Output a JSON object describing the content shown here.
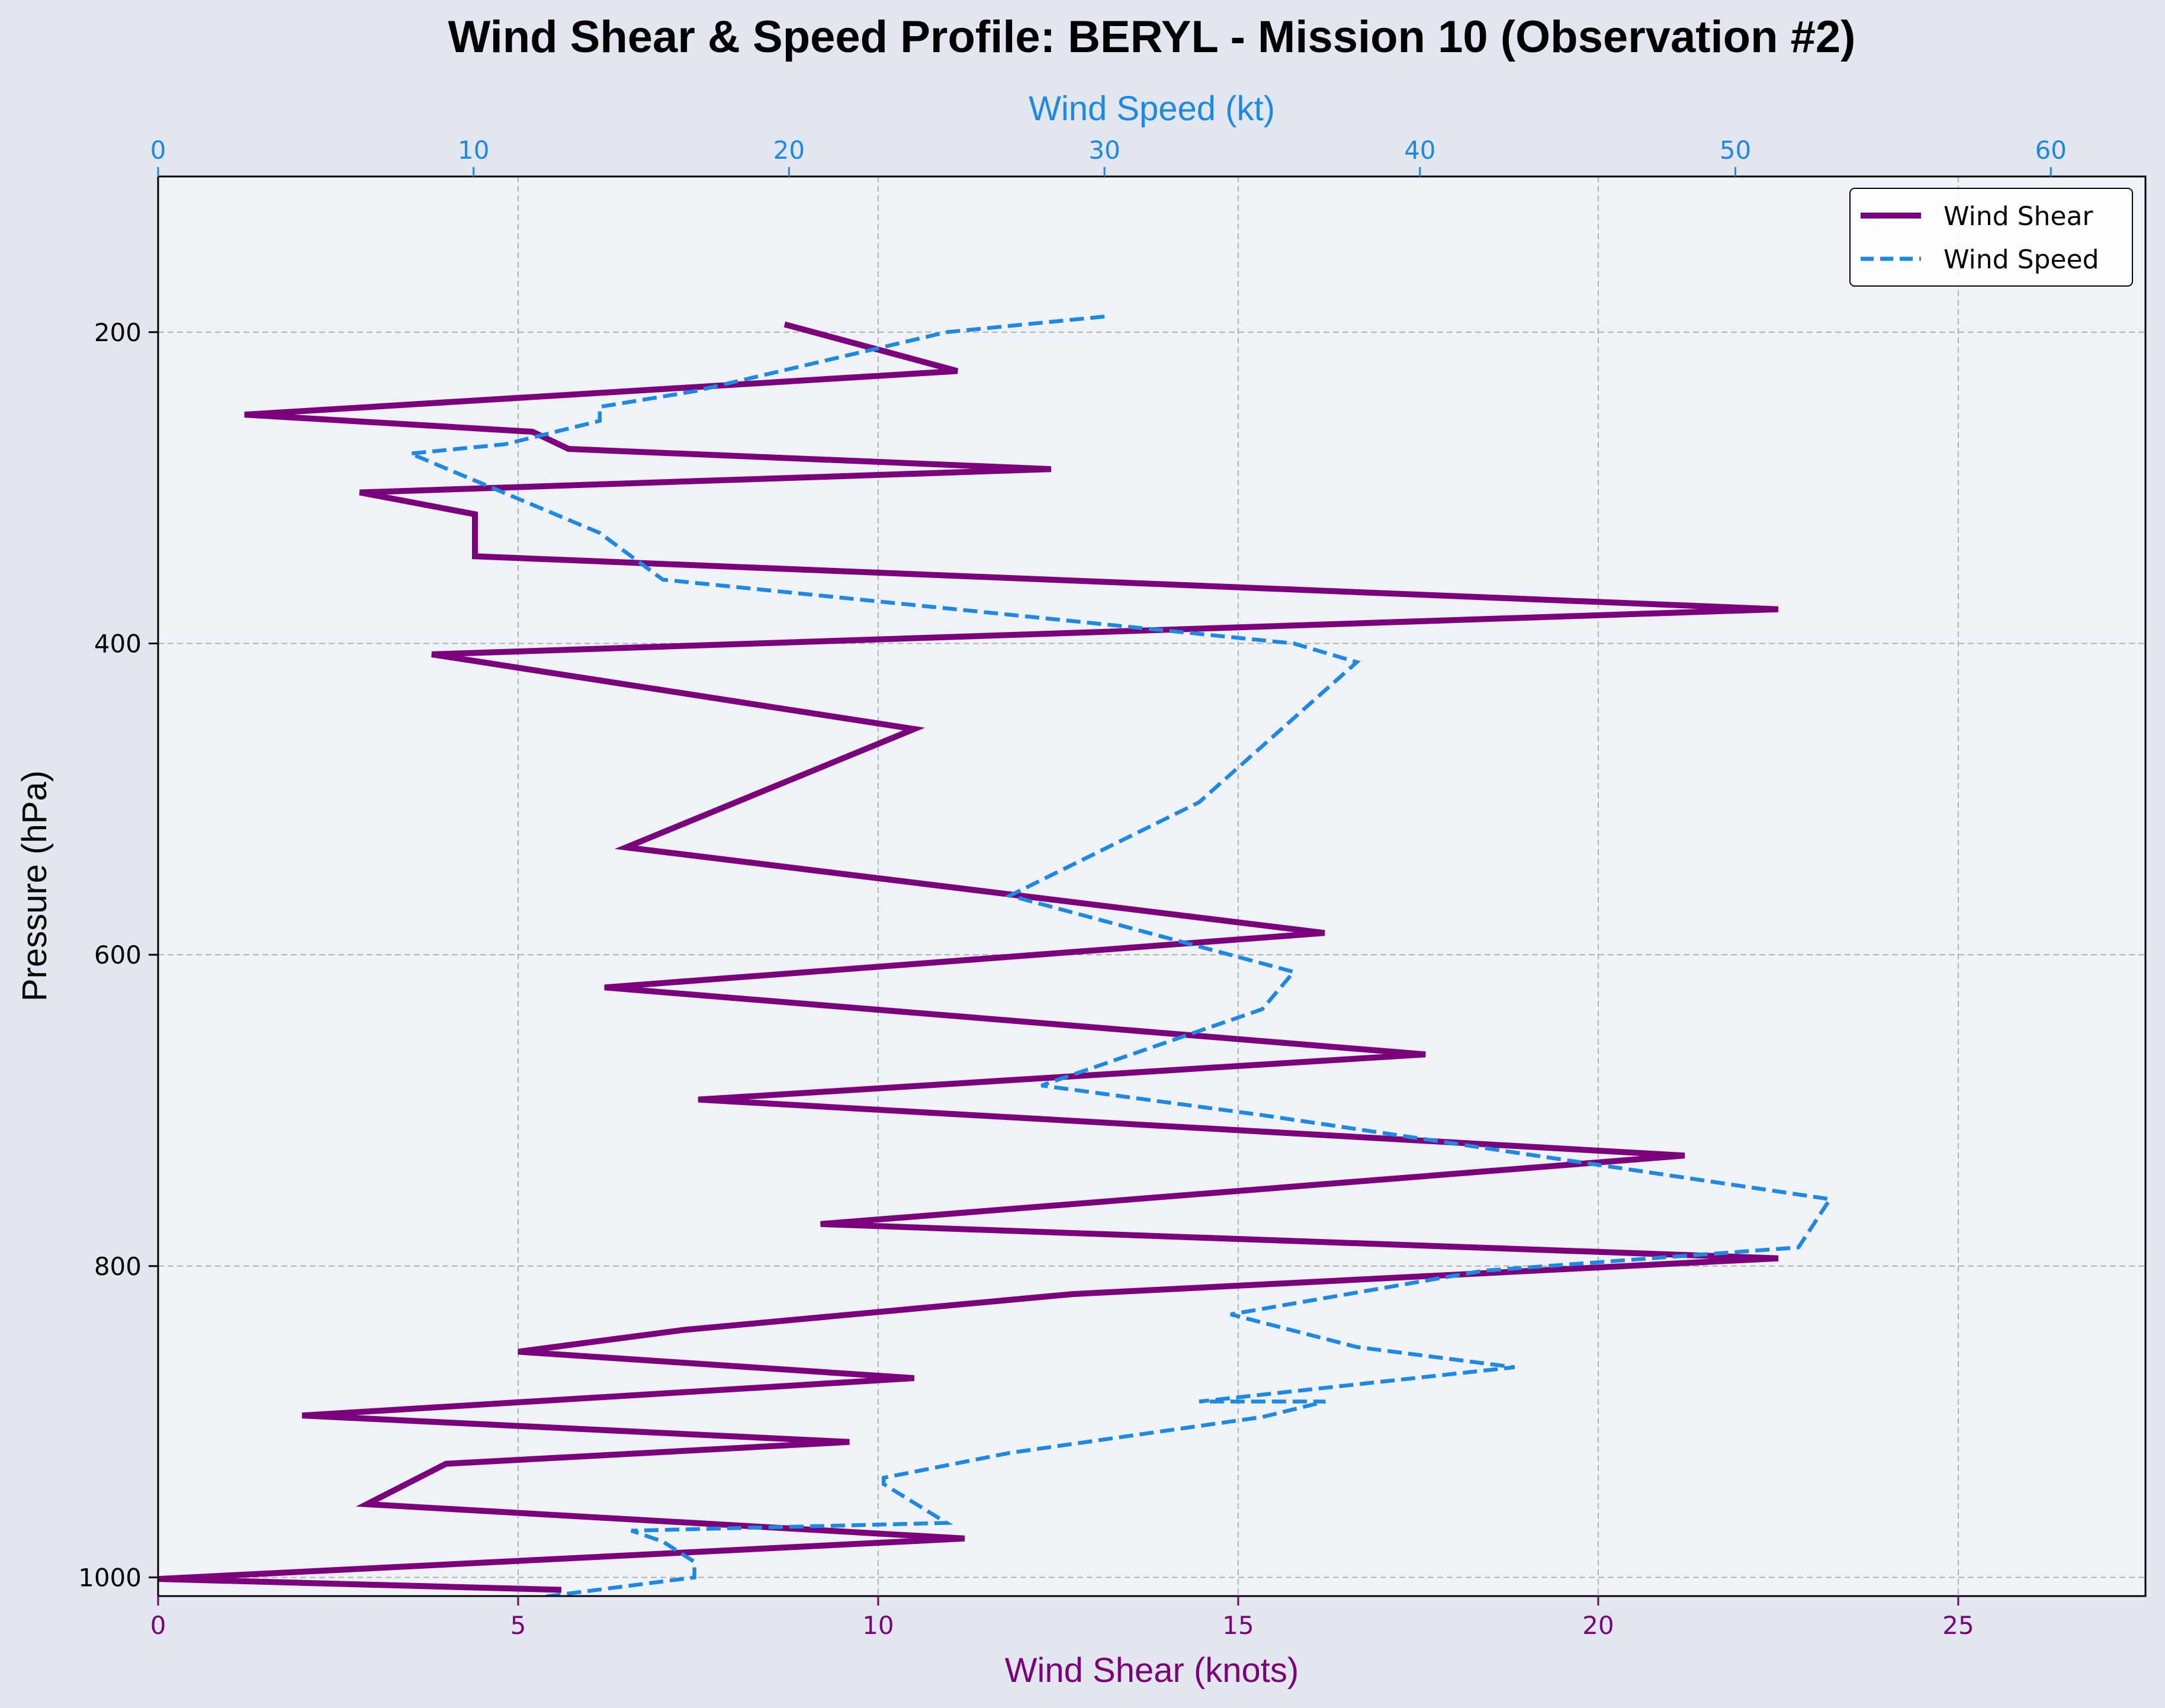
{
  "chart_data": {
    "type": "line",
    "title": "Wind Shear & Speed Profile: BERYL - Mission 10 (Observation #2)",
    "xlabel": "Wind Shear (knots)",
    "x2label": "Wind Speed (kt)",
    "ylabel": "Pressure (hPa)",
    "xlim": [
      0,
      27.6
    ],
    "x2lim": [
      0,
      63
    ],
    "ylim": [
      1012,
      100
    ],
    "y_inverted": true,
    "xticks": [
      0,
      5,
      10,
      15,
      20,
      25
    ],
    "x2ticks": [
      0,
      10,
      20,
      30,
      40,
      50,
      60
    ],
    "yticks": [
      200,
      400,
      600,
      800,
      1000
    ],
    "grid": true,
    "legend_position": "upper right",
    "colors": {
      "background": "#e1e6ef",
      "plot_background": "#eff3f8",
      "wind_shear": "#7b007b",
      "wind_speed": "#1e88e5",
      "grid": "#b0b0b0"
    },
    "series": [
      {
        "name": "Wind Shear",
        "axis": "bottom",
        "style": "solid",
        "points": [
          [
            8.7,
            195
          ],
          [
            11.1,
            225
          ],
          [
            1.2,
            253
          ],
          [
            5.2,
            264
          ],
          [
            5.7,
            275
          ],
          [
            12.4,
            288
          ],
          [
            2.8,
            303
          ],
          [
            4.4,
            317
          ],
          [
            4.4,
            344
          ],
          [
            22.5,
            378
          ],
          [
            3.8,
            407
          ],
          [
            10.5,
            455
          ],
          [
            6.5,
            531
          ],
          [
            16.2,
            586
          ],
          [
            6.2,
            621
          ],
          [
            17.6,
            664
          ],
          [
            7.5,
            693
          ],
          [
            21.2,
            729
          ],
          [
            9.2,
            773
          ],
          [
            22.5,
            795
          ],
          [
            12.7,
            818
          ],
          [
            7.3,
            841
          ],
          [
            5.0,
            855
          ],
          [
            10.5,
            872
          ],
          [
            2.0,
            896
          ],
          [
            9.6,
            913
          ],
          [
            4.0,
            927
          ],
          [
            2.9,
            953
          ],
          [
            11.2,
            975
          ],
          [
            0,
            1001
          ],
          [
            5.6,
            1008
          ]
        ]
      },
      {
        "name": "Wind Speed",
        "axis": "top",
        "style": "dashed",
        "points": [
          [
            30.0,
            190
          ],
          [
            25.0,
            200
          ],
          [
            17.0,
            238
          ],
          [
            14.0,
            248
          ],
          [
            14.0,
            257
          ],
          [
            11.0,
            272
          ],
          [
            8.0,
            278
          ],
          [
            14.0,
            329
          ],
          [
            16.0,
            359
          ],
          [
            36.0,
            400
          ],
          [
            38.0,
            412
          ],
          [
            33.0,
            502
          ],
          [
            27.0,
            562
          ],
          [
            36.0,
            611
          ],
          [
            35.0,
            635
          ],
          [
            28.0,
            684
          ],
          [
            35.0,
            703
          ],
          [
            53.0,
            757
          ],
          [
            52.0,
            788
          ],
          [
            42.0,
            803
          ],
          [
            34.0,
            831
          ],
          [
            38.0,
            852
          ],
          [
            43.0,
            865
          ],
          [
            33.0,
            887
          ],
          [
            37.0,
            887
          ],
          [
            35.0,
            897
          ],
          [
            27.0,
            920
          ],
          [
            23.0,
            936
          ],
          [
            23.0,
            940
          ],
          [
            25.0,
            965
          ],
          [
            15.0,
            970
          ],
          [
            16.0,
            977
          ],
          [
            17.0,
            990
          ],
          [
            17.0,
            1000
          ],
          [
            12.0,
            1013
          ]
        ]
      }
    ]
  }
}
